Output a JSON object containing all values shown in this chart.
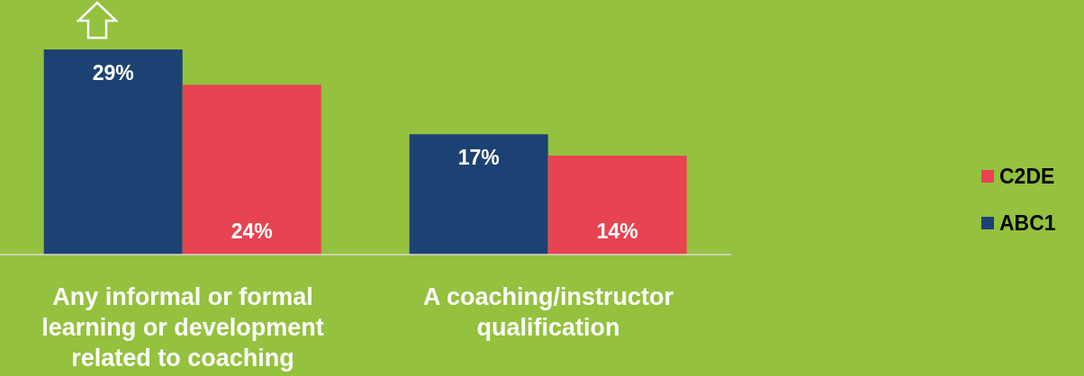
{
  "chart_data": {
    "type": "bar",
    "categories": [
      "Any informal or formal learning or development related to coaching",
      "A coaching/instructor qualification"
    ],
    "series": [
      {
        "name": "ABC1",
        "color": "#1c4273",
        "values": [
          29,
          17
        ],
        "value_labels": [
          "29%",
          "17%"
        ]
      },
      {
        "name": "C2DE",
        "color": "#e84352",
        "values": [
          24,
          14
        ],
        "value_labels": [
          "24%",
          "14%"
        ]
      }
    ],
    "legend": "right"
  }
}
